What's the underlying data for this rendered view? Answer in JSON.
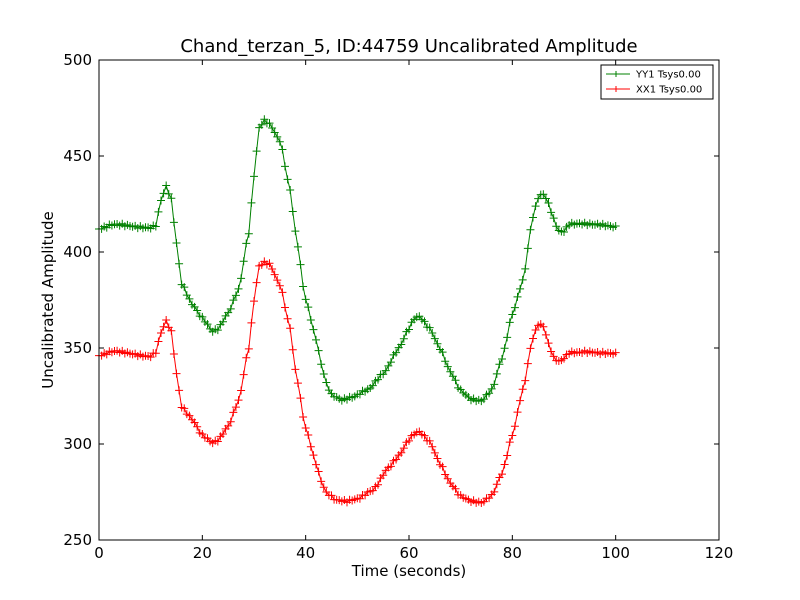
{
  "chart_data": {
    "type": "line",
    "title": "Chand_terzan_5, ID:44759 Uncalibrated Amplitude",
    "xlabel": "Time (seconds)",
    "ylabel": "Uncalibrated Amplitude",
    "xlim": [
      0,
      120
    ],
    "ylim": [
      250,
      500
    ],
    "xticks": [
      0,
      20,
      40,
      60,
      80,
      100,
      120
    ],
    "yticks": [
      250,
      300,
      350,
      400,
      450,
      500
    ],
    "grid": false,
    "legend_position": "top-right",
    "marker": "+",
    "sample_step": 0.5,
    "series": [
      {
        "name": "YY1 Tsys0.00",
        "color": "#008000",
        "knots": [
          [
            0,
            412
          ],
          [
            3,
            414
          ],
          [
            10,
            413
          ],
          [
            11,
            414
          ],
          [
            12,
            427
          ],
          [
            13,
            434
          ],
          [
            14,
            427
          ],
          [
            15,
            404
          ],
          [
            16,
            383
          ],
          [
            18,
            373
          ],
          [
            20,
            366
          ],
          [
            22,
            359
          ],
          [
            23,
            360
          ],
          [
            25,
            368
          ],
          [
            27,
            380
          ],
          [
            29,
            410
          ],
          [
            30,
            440
          ],
          [
            31,
            465
          ],
          [
            32,
            469
          ],
          [
            33,
            467
          ],
          [
            35,
            458
          ],
          [
            37,
            432
          ],
          [
            38,
            410
          ],
          [
            40,
            375
          ],
          [
            42,
            355
          ],
          [
            43,
            342
          ],
          [
            44,
            332
          ],
          [
            45,
            326
          ],
          [
            47,
            323
          ],
          [
            49,
            324
          ],
          [
            52,
            328
          ],
          [
            55,
            337
          ],
          [
            58,
            350
          ],
          [
            60,
            360
          ],
          [
            61,
            365
          ],
          [
            62,
            366
          ],
          [
            64,
            360
          ],
          [
            66,
            350
          ],
          [
            68,
            338
          ],
          [
            70,
            328
          ],
          [
            72,
            323
          ],
          [
            74,
            322
          ],
          [
            76,
            328
          ],
          [
            78,
            345
          ],
          [
            80,
            368
          ],
          [
            82,
            385
          ],
          [
            84,
            418
          ],
          [
            85,
            428
          ],
          [
            86,
            430
          ],
          [
            87,
            425
          ],
          [
            88,
            417
          ],
          [
            89,
            411
          ],
          [
            90,
            411
          ],
          [
            91,
            415
          ],
          [
            93,
            415
          ],
          [
            96,
            414
          ],
          [
            100,
            413
          ]
        ]
      },
      {
        "name": "XX1 Tsys0.00",
        "color": "#ff0000",
        "knots": [
          [
            0,
            346
          ],
          [
            3,
            348
          ],
          [
            10,
            346
          ],
          [
            11,
            348
          ],
          [
            12,
            358
          ],
          [
            13,
            364
          ],
          [
            14,
            358
          ],
          [
            15,
            336
          ],
          [
            16,
            319
          ],
          [
            18,
            313
          ],
          [
            20,
            305
          ],
          [
            22,
            301
          ],
          [
            23,
            302
          ],
          [
            25,
            309
          ],
          [
            27,
            322
          ],
          [
            29,
            350
          ],
          [
            30,
            375
          ],
          [
            31,
            393
          ],
          [
            32,
            395
          ],
          [
            33,
            394
          ],
          [
            35,
            383
          ],
          [
            37,
            360
          ],
          [
            38,
            338
          ],
          [
            40,
            308
          ],
          [
            42,
            290
          ],
          [
            43,
            281
          ],
          [
            44,
            275
          ],
          [
            46,
            271
          ],
          [
            48,
            270
          ],
          [
            50,
            271
          ],
          [
            53,
            276
          ],
          [
            56,
            288
          ],
          [
            58,
            294
          ],
          [
            60,
            302
          ],
          [
            61,
            305
          ],
          [
            62,
            306
          ],
          [
            64,
            301
          ],
          [
            66,
            290
          ],
          [
            68,
            280
          ],
          [
            70,
            273
          ],
          [
            72,
            270
          ],
          [
            74,
            269
          ],
          [
            76,
            273
          ],
          [
            78,
            285
          ],
          [
            80,
            305
          ],
          [
            82,
            328
          ],
          [
            84,
            355
          ],
          [
            85,
            362
          ],
          [
            86,
            361
          ],
          [
            87,
            352
          ],
          [
            88,
            345
          ],
          [
            89,
            343
          ],
          [
            90,
            345
          ],
          [
            91,
            348
          ],
          [
            94,
            348
          ],
          [
            97,
            347
          ],
          [
            100,
            347
          ]
        ]
      }
    ]
  }
}
